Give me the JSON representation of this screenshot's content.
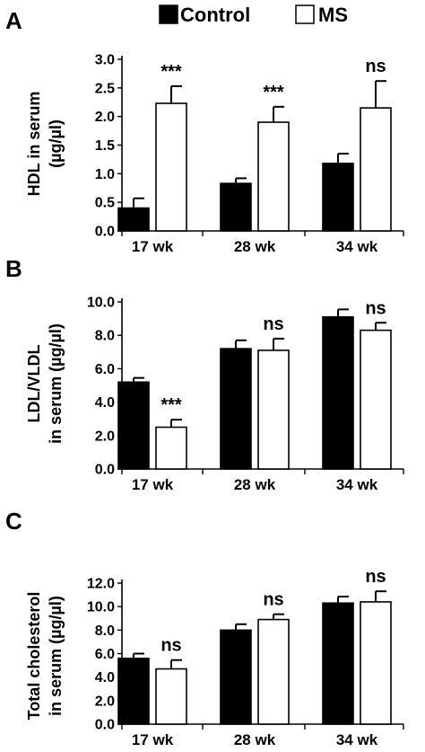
{
  "legend": {
    "control_label": "Control",
    "ms_label": "MS",
    "control_color": "#000000",
    "ms_color": "#ffffff",
    "position": "top-center"
  },
  "chart_data": [
    {
      "type": "bar",
      "panel_label": "A",
      "ylabel_lines": [
        "HDL in serum",
        "(µg/µl)"
      ],
      "categories": [
        "17 wk",
        "28 wk",
        "34 wk"
      ],
      "ylim": [
        0,
        3.0
      ],
      "yticks": [
        "0.0",
        "0.5",
        "1.0",
        "1.5",
        "2.0",
        "2.5",
        "3.0"
      ],
      "series": [
        {
          "name": "Control",
          "values": [
            0.4,
            0.83,
            1.18
          ],
          "errors": [
            0.17,
            0.09,
            0.17
          ]
        },
        {
          "name": "MS",
          "values": [
            2.23,
            1.9,
            2.15
          ],
          "errors": [
            0.3,
            0.27,
            0.47
          ]
        }
      ],
      "annotations": [
        "***",
        "***",
        "ns"
      ]
    },
    {
      "type": "bar",
      "panel_label": "B",
      "ylabel_lines": [
        "LDL/VLDL",
        "in serum (µg/µl)"
      ],
      "categories": [
        "17 wk",
        "28 wk",
        "34 wk"
      ],
      "ylim": [
        0,
        10.0
      ],
      "yticks": [
        "0.0",
        "2.0",
        "4.0",
        "6.0",
        "8.0",
        "10.0"
      ],
      "series": [
        {
          "name": "Control",
          "values": [
            5.2,
            7.2,
            9.1
          ],
          "errors": [
            0.25,
            0.5,
            0.45
          ]
        },
        {
          "name": "MS",
          "values": [
            2.5,
            7.1,
            8.3
          ],
          "errors": [
            0.45,
            0.7,
            0.45
          ]
        }
      ],
      "annotations": [
        "***",
        "ns",
        "ns"
      ]
    },
    {
      "type": "bar",
      "panel_label": "C",
      "ylabel_lines": [
        "Total cholesterol",
        "in serum (µg/µl)"
      ],
      "categories": [
        "17 wk",
        "28 wk",
        "34 wk"
      ],
      "ylim": [
        0,
        12.0
      ],
      "yticks": [
        "0.0",
        "2.0",
        "4.0",
        "6.0",
        "8.0",
        "10.0",
        "12.0"
      ],
      "series": [
        {
          "name": "Control",
          "values": [
            5.6,
            8.0,
            10.3
          ],
          "errors": [
            0.4,
            0.5,
            0.55
          ]
        },
        {
          "name": "MS",
          "values": [
            4.7,
            8.9,
            10.4
          ],
          "errors": [
            0.75,
            0.45,
            0.9
          ]
        }
      ],
      "annotations": [
        "ns",
        "ns",
        "ns"
      ]
    }
  ]
}
